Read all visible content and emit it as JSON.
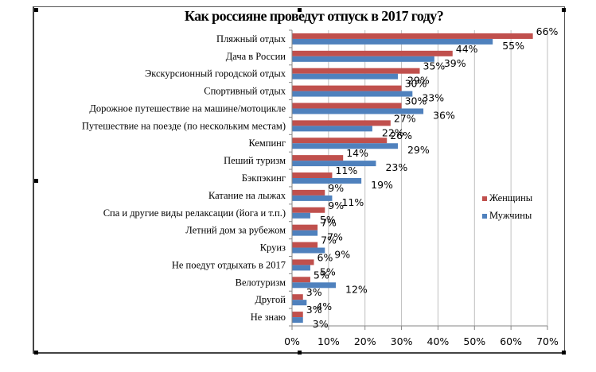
{
  "chart_data": {
    "type": "bar",
    "orientation": "horizontal",
    "title": "Как россияне проведут отпуск в 2017 году?",
    "xlabel": "",
    "ylabel": "",
    "xlim": [
      0,
      70
    ],
    "x_ticks": [
      "0%",
      "10%",
      "20%",
      "30%",
      "40%",
      "50%",
      "60%",
      "70%"
    ],
    "x_tick_values": [
      0,
      10,
      20,
      30,
      40,
      50,
      60,
      70
    ],
    "grid": true,
    "legend_position": "right",
    "categories": [
      "Пляжный отдых",
      "Дача в России",
      "Экскурсионный городской отдых",
      "Спортивный отдых",
      "Дорожное путешествие на машине/мотоцикле",
      "Путешествие на поезде (по нескольким местам)",
      "Кемпинг",
      "Пеший туризм",
      "Бэкпэкинг",
      "Катание на лыжах",
      "Спа и другие виды релаксации (йога и т.п.)",
      "Летний дом за рубежом",
      "Круиз",
      "Не поедут отдыхать в 2017",
      "Велотуризм",
      "Другой",
      "Не знаю"
    ],
    "series": [
      {
        "name": "Женщины",
        "color": "#c0504d",
        "values": [
          66,
          44,
          35,
          30,
          30,
          27,
          26,
          14,
          11,
          9,
          9,
          7,
          7,
          6,
          5,
          3,
          3
        ]
      },
      {
        "name": "Мужчины",
        "color": "#4f81bd",
        "values": [
          55,
          39,
          29,
          33,
          36,
          22,
          29,
          23,
          19,
          11,
          5,
          7,
          9,
          5,
          12,
          4,
          3
        ]
      }
    ],
    "value_suffix": "%"
  }
}
